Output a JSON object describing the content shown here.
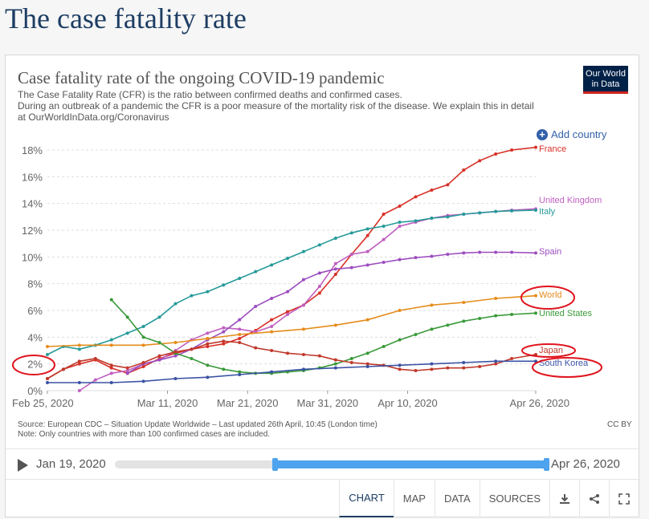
{
  "page": {
    "title": "The case fatality rate"
  },
  "chart_header": {
    "title": "Case fatality rate of the ongoing COVID-19 pandemic",
    "subtitle_line1": "The Case Fatality Rate (CFR) is the ratio between confirmed deaths and confirmed cases.",
    "subtitle_line2": "During an outbreak of a pandemic the CFR is a poor measure of the mortality risk of the disease. We explain this in detail at OurWorldInData.org/Coronavirus",
    "logo_line1": "Our World",
    "logo_line2": "in Data"
  },
  "controls": {
    "add_country": "Add country"
  },
  "colors": {
    "accent": "#3360a9",
    "annotation": "#e0141e",
    "timeline": "#4da3ee",
    "logo_bg": "#002147"
  },
  "chart_data": {
    "type": "line",
    "x_ticks": [
      "Feb 25, 2020",
      "Mar 11, 2020",
      "Mar 21, 2020",
      "Mar 31, 2020",
      "Apr 10, 2020",
      "Apr 26, 2020"
    ],
    "x_tick_days": [
      0,
      15,
      25,
      35,
      45,
      61
    ],
    "y_ticks": [
      "0%",
      "2%",
      "4%",
      "6%",
      "8%",
      "10%",
      "12%",
      "14%",
      "16%",
      "18%"
    ],
    "ylim": [
      0,
      18
    ],
    "xlim_days": [
      0,
      61
    ],
    "grid": "horizontal",
    "series": [
      {
        "name": "France",
        "color": "#d73027",
        "x": [
          0,
          2,
          4,
          6,
          8,
          10,
          12,
          14,
          16,
          18,
          20,
          22,
          24,
          26,
          28,
          30,
          32,
          34,
          36,
          38,
          40,
          42,
          44,
          46,
          48,
          50,
          52,
          54,
          56,
          58,
          61
        ],
        "y": [
          0.9,
          1.6,
          2.0,
          2.3,
          1.7,
          1.3,
          1.8,
          2.4,
          2.8,
          3.1,
          3.3,
          3.5,
          3.9,
          4.5,
          5.3,
          5.9,
          6.4,
          7.3,
          8.7,
          10.2,
          11.6,
          13.2,
          13.8,
          14.5,
          15.0,
          15.4,
          16.5,
          17.2,
          17.7,
          18.0,
          18.2
        ]
      },
      {
        "name": "United Kingdom",
        "color": "#c05fc0",
        "x": [
          4,
          6,
          8,
          10,
          12,
          14,
          16,
          18,
          20,
          22,
          24,
          26,
          28,
          30,
          32,
          34,
          36,
          38,
          40,
          42,
          44,
          46,
          48,
          50,
          52,
          54,
          56,
          58,
          61
        ],
        "y": [
          0.0,
          0.8,
          1.3,
          1.5,
          2.0,
          2.3,
          3.0,
          3.8,
          4.3,
          4.7,
          4.6,
          4.4,
          4.8,
          5.7,
          6.4,
          7.8,
          9.5,
          10.2,
          10.4,
          11.3,
          12.3,
          12.6,
          12.9,
          13.1,
          13.2,
          13.3,
          13.4,
          13.5,
          13.6
        ]
      },
      {
        "name": "Italy",
        "color": "#269a9a",
        "x": [
          0,
          2,
          4,
          6,
          8,
          10,
          12,
          14,
          16,
          18,
          20,
          22,
          24,
          26,
          28,
          30,
          32,
          34,
          36,
          38,
          40,
          42,
          44,
          46,
          48,
          50,
          52,
          54,
          56,
          58,
          61
        ],
        "y": [
          2.7,
          3.3,
          3.1,
          3.4,
          3.8,
          4.3,
          4.8,
          5.5,
          6.5,
          7.1,
          7.4,
          7.9,
          8.4,
          8.9,
          9.4,
          9.9,
          10.4,
          10.9,
          11.4,
          11.8,
          12.1,
          12.3,
          12.6,
          12.7,
          12.9,
          13.0,
          13.2,
          13.3,
          13.4,
          13.45,
          13.5
        ]
      },
      {
        "name": "Spain",
        "color": "#9c4dbf",
        "x": [
          10,
          12,
          14,
          16,
          18,
          20,
          22,
          24,
          26,
          28,
          30,
          32,
          34,
          36,
          38,
          40,
          42,
          44,
          46,
          48,
          50,
          52,
          54,
          56,
          58,
          61
        ],
        "y": [
          1.3,
          2.0,
          2.3,
          2.6,
          3.1,
          3.8,
          4.4,
          5.3,
          6.3,
          6.9,
          7.4,
          8.3,
          8.8,
          9.1,
          9.2,
          9.4,
          9.6,
          9.8,
          9.95,
          10.05,
          10.2,
          10.3,
          10.35,
          10.35,
          10.35,
          10.3
        ]
      },
      {
        "name": "World",
        "color": "#e58c1a",
        "x": [
          0,
          4,
          8,
          12,
          16,
          20,
          24,
          28,
          32,
          36,
          40,
          44,
          48,
          52,
          56,
          61
        ],
        "y": [
          3.3,
          3.4,
          3.4,
          3.4,
          3.6,
          3.9,
          4.2,
          4.4,
          4.6,
          4.9,
          5.3,
          6.0,
          6.4,
          6.6,
          6.9,
          7.1
        ]
      },
      {
        "name": "United States",
        "color": "#3a9a3a",
        "x": [
          8,
          10,
          12,
          14,
          16,
          18,
          20,
          22,
          24,
          26,
          28,
          30,
          32,
          34,
          36,
          38,
          40,
          42,
          44,
          46,
          48,
          50,
          52,
          54,
          56,
          58,
          61
        ],
        "y": [
          6.8,
          5.5,
          4.0,
          3.6,
          2.8,
          2.4,
          1.9,
          1.6,
          1.4,
          1.3,
          1.3,
          1.4,
          1.5,
          1.7,
          2.0,
          2.4,
          2.8,
          3.3,
          3.8,
          4.2,
          4.6,
          4.9,
          5.2,
          5.4,
          5.6,
          5.7,
          5.8
        ]
      },
      {
        "name": "Japan",
        "color": "#c0392b",
        "x": [
          0,
          2,
          4,
          6,
          8,
          10,
          12,
          14,
          16,
          18,
          20,
          22,
          24,
          26,
          28,
          30,
          32,
          34,
          36,
          38,
          40,
          42,
          44,
          46,
          48,
          50,
          52,
          54,
          56,
          58,
          61
        ],
        "y": [
          0.9,
          1.6,
          2.2,
          2.4,
          1.9,
          1.7,
          2.1,
          2.6,
          2.9,
          3.1,
          3.5,
          3.7,
          3.6,
          3.2,
          3.0,
          2.8,
          2.7,
          2.6,
          2.3,
          2.1,
          2.0,
          1.9,
          1.6,
          1.5,
          1.6,
          1.7,
          1.7,
          1.8,
          2.0,
          2.4,
          2.7
        ]
      },
      {
        "name": "South Korea",
        "color": "#3a52a4",
        "x": [
          0,
          4,
          8,
          12,
          16,
          20,
          24,
          28,
          32,
          36,
          40,
          44,
          48,
          52,
          56,
          61
        ],
        "y": [
          0.6,
          0.6,
          0.6,
          0.7,
          0.9,
          1.0,
          1.2,
          1.4,
          1.6,
          1.7,
          1.8,
          1.9,
          2.0,
          2.1,
          2.2,
          2.2
        ]
      }
    ]
  },
  "footer": {
    "source": "Source: European CDC – Situation Update Worldwide – Last updated 26th April, 10:45 (London time)",
    "note": "Note: Only countries with more than 100 confirmed cases are included.",
    "license": "CC BY"
  },
  "timeline": {
    "start": "Jan 19, 2020",
    "end": "Apr 26, 2020",
    "range_start_frac": 0.37,
    "range_end_frac": 1.0
  },
  "tabs": [
    {
      "label": "CHART",
      "active": true
    },
    {
      "label": "MAP"
    },
    {
      "label": "DATA"
    },
    {
      "label": "SOURCES"
    }
  ],
  "icons": [
    "download-icon",
    "share-icon",
    "fullscreen-icon"
  ]
}
